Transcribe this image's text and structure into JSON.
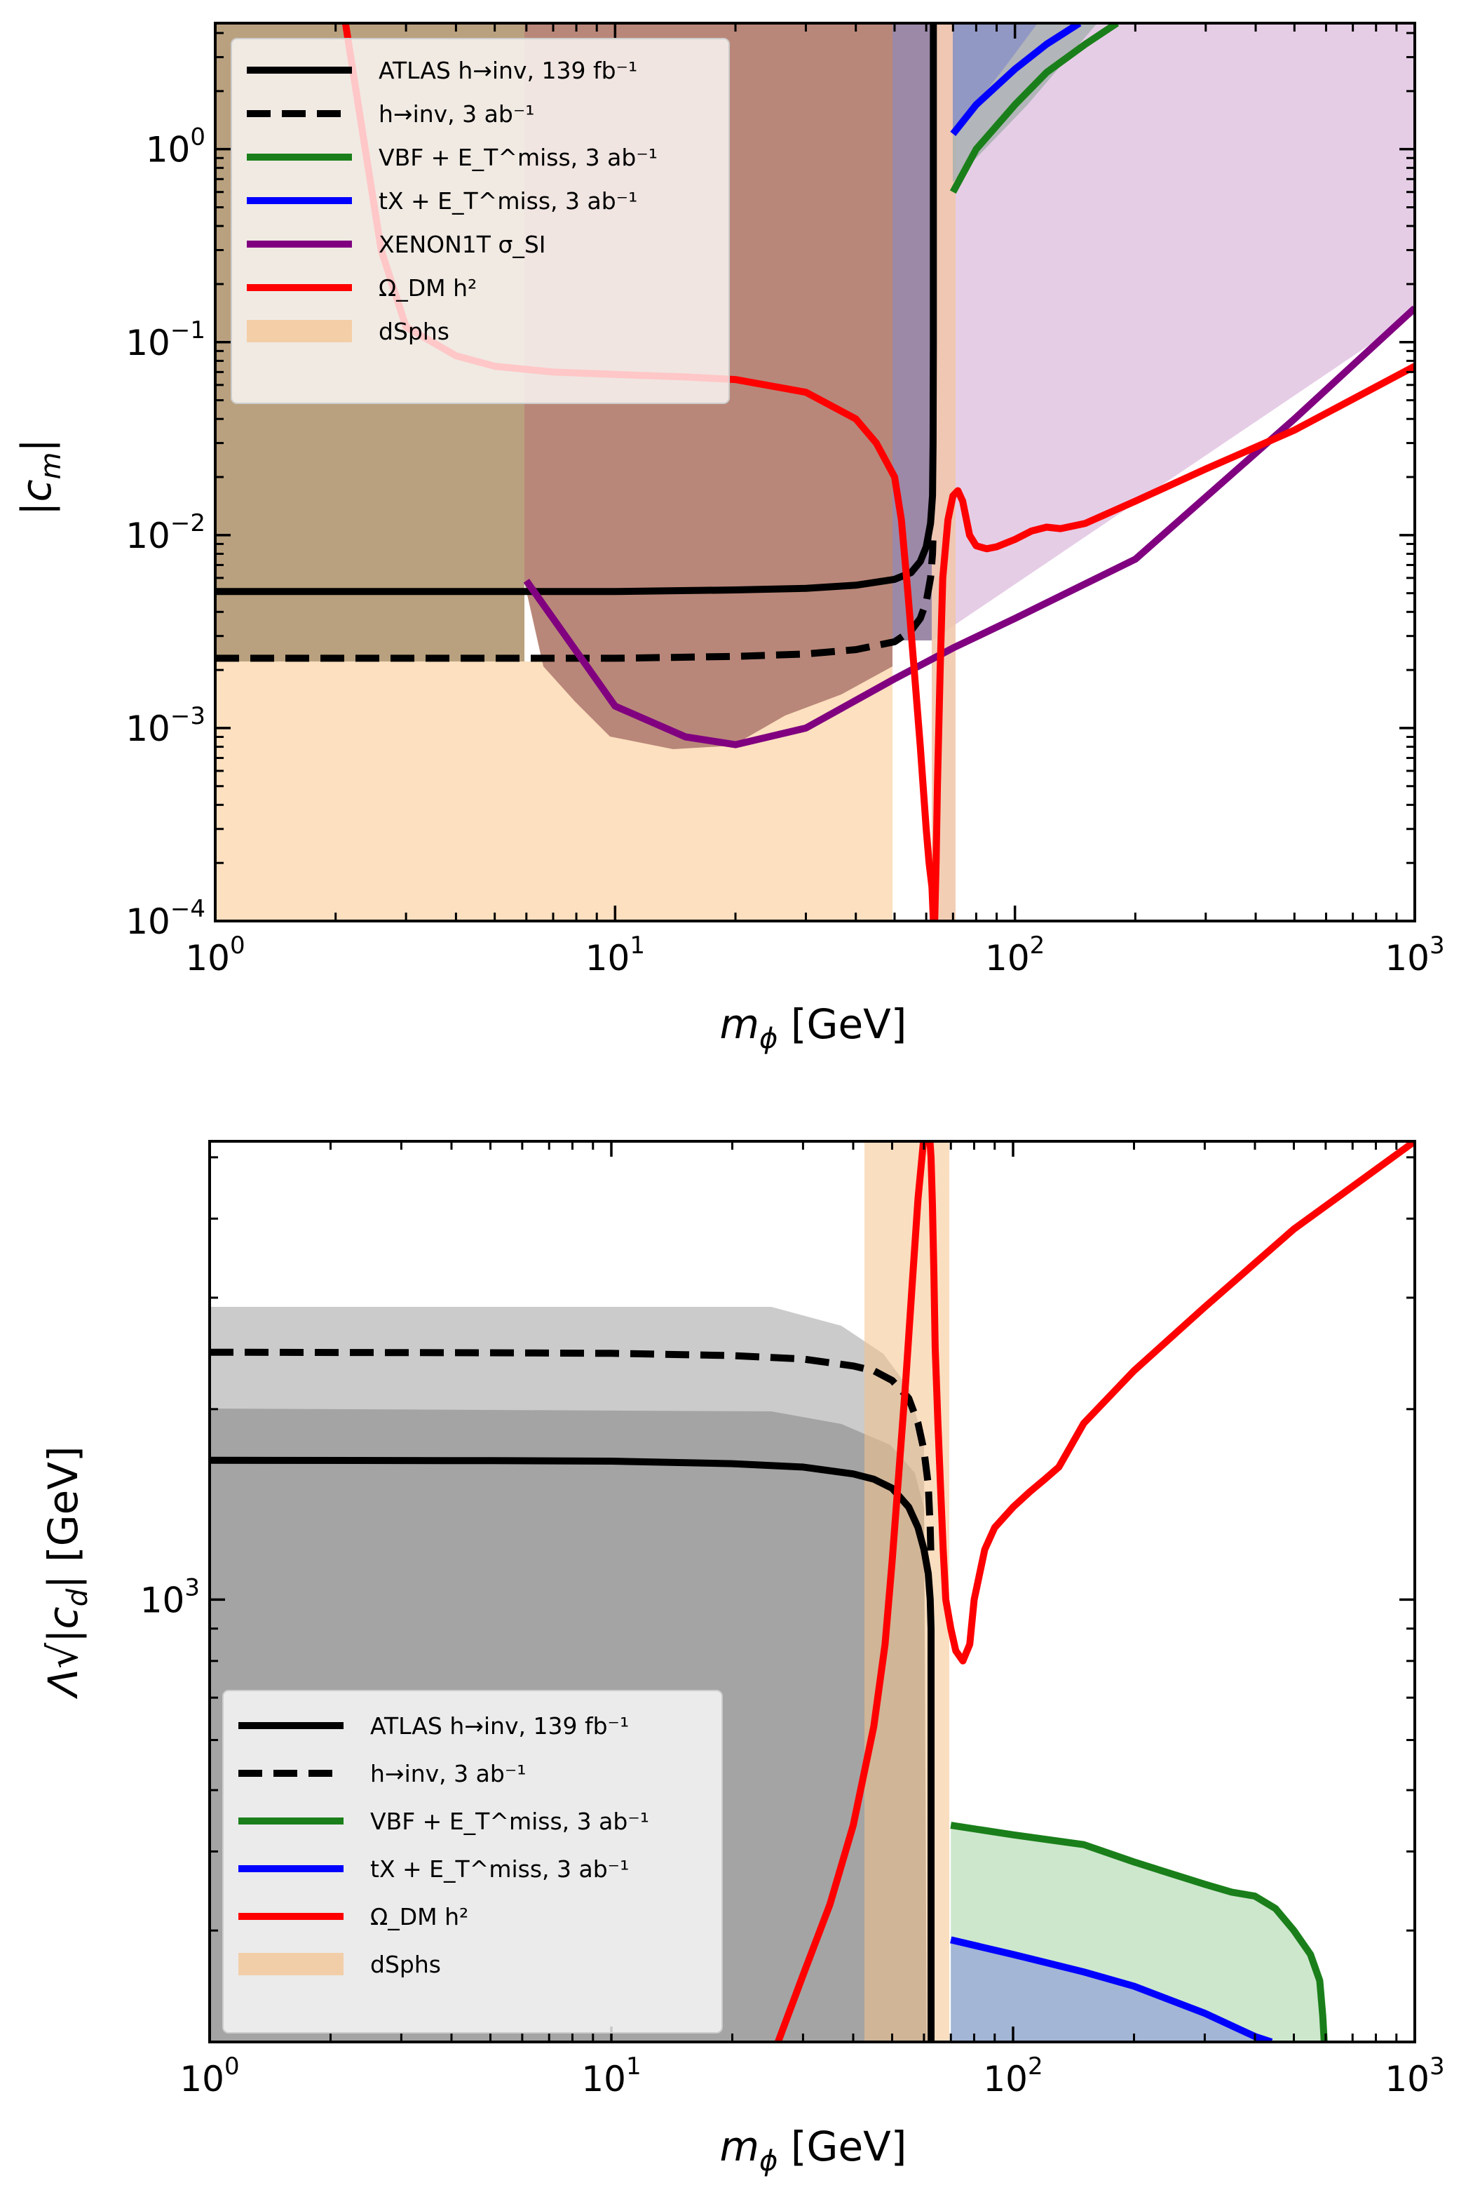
{
  "chart_data": [
    {
      "type": "line",
      "panel": "top",
      "xscale": "log",
      "yscale": "log",
      "xlim": [
        1,
        1000
      ],
      "ylim": [
        0.0001,
        4.5
      ],
      "xlabel": "m_ϕ [GeV]",
      "ylabel": "|c_m|",
      "x_ticks": [
        {
          "value": 1,
          "base": "10",
          "exp": "0"
        },
        {
          "value": 10,
          "base": "10",
          "exp": "1"
        },
        {
          "value": 100,
          "base": "10",
          "exp": "2"
        },
        {
          "value": 1000,
          "base": "10",
          "exp": "3"
        }
      ],
      "y_ticks": [
        {
          "value": 0.0001,
          "base": "10",
          "exp": "−4"
        },
        {
          "value": 0.001,
          "base": "10",
          "exp": "−3"
        },
        {
          "value": 0.01,
          "base": "10",
          "exp": "−2"
        },
        {
          "value": 0.1,
          "base": "10",
          "exp": "−1"
        },
        {
          "value": 1,
          "base": "10",
          "exp": "0"
        }
      ],
      "legend_position": "top-left",
      "legend": [
        {
          "label": "ATLAS h→inv, 139 fb⁻¹",
          "color": "#000000",
          "style": "solid"
        },
        {
          "label": "h→inv, 3 ab⁻¹",
          "color": "#000000",
          "style": "dashed"
        },
        {
          "label": "VBF + E_T^miss, 3 ab⁻¹",
          "color": "#1a7f1a",
          "style": "solid"
        },
        {
          "label": "tX + E_T^miss, 3 ab⁻¹",
          "color": "#0000ff",
          "style": "solid"
        },
        {
          "label": "XENON1T σ_SI",
          "color": "#800080",
          "style": "solid"
        },
        {
          "label": "Ω_DM h²",
          "color": "#ff0000",
          "style": "solid"
        },
        {
          "label": "dSphs",
          "color": "#f5c28c",
          "style": "patch"
        }
      ],
      "series": [
        {
          "name": "ATLAS h→inv, 139 fb⁻¹",
          "color": "#000000",
          "x": [
            1,
            5,
            10,
            20,
            30,
            40,
            50,
            55,
            58,
            60,
            61.5,
            62.2,
            62.4,
            62.5,
            62.5
          ],
          "y": [
            0.0051,
            0.0051,
            0.0051,
            0.0052,
            0.0053,
            0.0055,
            0.0059,
            0.0064,
            0.0073,
            0.0087,
            0.0115,
            0.016,
            0.03,
            0.1,
            4.5
          ]
        },
        {
          "name": "h→inv, 3 ab⁻¹",
          "color": "#000000",
          "dashed": true,
          "x": [
            1,
            5,
            10,
            20,
            30,
            40,
            50,
            55,
            58,
            60,
            61.5,
            62.2,
            62.4
          ],
          "y": [
            0.0023,
            0.0023,
            0.0023,
            0.00235,
            0.00242,
            0.00255,
            0.0028,
            0.0032,
            0.0037,
            0.0045,
            0.006,
            0.008,
            0.01
          ]
        },
        {
          "name": "VBF + E_T^miss, 3 ab⁻¹",
          "color": "#1a7f1a",
          "x": [
            70,
            80,
            100,
            120,
            150,
            180
          ],
          "y": [
            0.6,
            1.0,
            1.7,
            2.5,
            3.5,
            4.5
          ]
        },
        {
          "name": "tX + E_T^miss, 3 ab⁻¹",
          "color": "#0000ff",
          "x": [
            70,
            80,
            100,
            120,
            145
          ],
          "y": [
            1.2,
            1.7,
            2.6,
            3.5,
            4.5
          ]
        },
        {
          "name": "XENON1T σ_SI",
          "color": "#800080",
          "x": [
            6,
            8,
            10,
            15,
            20,
            30,
            50,
            70,
            100,
            200,
            500,
            1000
          ],
          "y": [
            0.0058,
            0.0025,
            0.0013,
            0.0009,
            0.00082,
            0.001,
            0.0018,
            0.0026,
            0.0037,
            0.0075,
            0.04,
            0.15
          ]
        },
        {
          "name": "Ω_DM h²",
          "color": "#ff0000",
          "x": [
            2.1,
            2.3,
            2.6,
            3,
            4,
            5,
            7,
            10,
            15,
            20,
            30,
            40,
            45,
            50,
            52,
            54,
            56,
            58,
            60,
            61,
            62,
            62.5,
            63,
            63.5,
            64,
            65,
            66,
            68,
            70,
            72,
            74,
            77,
            80,
            85,
            90,
            100,
            110,
            120,
            130,
            150,
            200,
            300,
            500,
            1000
          ],
          "y": [
            5,
            1.5,
            0.3,
            0.12,
            0.085,
            0.075,
            0.07,
            0.068,
            0.066,
            0.064,
            0.055,
            0.04,
            0.03,
            0.02,
            0.012,
            0.005,
            0.002,
            0.0008,
            0.0003,
            0.0002,
            0.00015,
            0.0001,
            0.0001,
            0.0002,
            0.0005,
            0.002,
            0.006,
            0.012,
            0.016,
            0.017,
            0.015,
            0.01,
            0.0088,
            0.0085,
            0.0087,
            0.0095,
            0.0105,
            0.011,
            0.0108,
            0.0115,
            0.015,
            0.022,
            0.035,
            0.075
          ]
        }
      ]
    },
    {
      "type": "line",
      "panel": "bottom",
      "xscale": "log",
      "yscale": "log",
      "xlim": [
        1,
        1000
      ],
      "ylim": [
        200,
        5300
      ],
      "xlabel": "m_ϕ [GeV]",
      "ylabel": "Λ√|c_d| [GeV]",
      "x_ticks": [
        {
          "value": 1,
          "base": "10",
          "exp": "0"
        },
        {
          "value": 10,
          "base": "10",
          "exp": "1"
        },
        {
          "value": 100,
          "base": "10",
          "exp": "2"
        },
        {
          "value": 1000,
          "base": "10",
          "exp": "3"
        }
      ],
      "y_ticks": [
        {
          "value": 1000,
          "base": "10",
          "exp": "3"
        }
      ],
      "legend_position": "lower-left",
      "legend": [
        {
          "label": "ATLAS h→inv, 139 fb⁻¹",
          "color": "#000000",
          "style": "solid"
        },
        {
          "label": "h→inv, 3 ab⁻¹",
          "color": "#000000",
          "style": "dashed"
        },
        {
          "label": "VBF + E_T^miss, 3 ab⁻¹",
          "color": "#1a7f1a",
          "style": "solid"
        },
        {
          "label": "tX + E_T^miss, 3 ab⁻¹",
          "color": "#0000ff",
          "style": "solid"
        },
        {
          "label": "Ω_DM h²",
          "color": "#ff0000",
          "style": "solid"
        },
        {
          "label": "dSphs",
          "color": "#f5c28c",
          "style": "patch"
        }
      ],
      "series": [
        {
          "name": "ATLAS h→inv, 139 fb⁻¹",
          "color": "#000000",
          "x": [
            1,
            5,
            10,
            20,
            30,
            40,
            45,
            50,
            55,
            58,
            60,
            61.5,
            62.2,
            62.5,
            62.5
          ],
          "y": [
            1660,
            1658,
            1655,
            1640,
            1620,
            1580,
            1550,
            1500,
            1400,
            1300,
            1200,
            1100,
            1000,
            900,
            200
          ]
        },
        {
          "name": "h→inv, 3 ab⁻¹",
          "color": "#000000",
          "dashed": true,
          "x": [
            1,
            5,
            10,
            20,
            30,
            40,
            45,
            50,
            55,
            58,
            60,
            61.5,
            62.2,
            62.5
          ],
          "y": [
            2460,
            2455,
            2450,
            2430,
            2400,
            2340,
            2300,
            2220,
            2080,
            1900,
            1720,
            1520,
            1300,
            1150
          ]
        },
        {
          "name": "VBF + E_T^miss, 3 ab⁻¹",
          "color": "#1a7f1a",
          "x": [
            70,
            100,
            150,
            200,
            300,
            350,
            400,
            450,
            500,
            550,
            580,
            590,
            595
          ],
          "y": [
            440,
            425,
            410,
            385,
            355,
            345,
            340,
            325,
            300,
            275,
            250,
            220,
            200
          ]
        },
        {
          "name": "tX + E_T^miss, 3 ab⁻¹",
          "color": "#0000ff",
          "x": [
            70,
            100,
            150,
            200,
            300,
            400,
            440
          ],
          "y": [
            290,
            275,
            258,
            245,
            222,
            204,
            200
          ]
        },
        {
          "name": "Ω_DM h²",
          "color": "#ff0000",
          "x": [
            26,
            30,
            35,
            40,
            45,
            48,
            50,
            52,
            54,
            56,
            58,
            60,
            61,
            62,
            62.5,
            63,
            63.5,
            64,
            65,
            66,
            67,
            68,
            70,
            72,
            75,
            78,
            80,
            85,
            90,
            100,
            110,
            120,
            130,
            150,
            200,
            300,
            500,
            1000
          ],
          "y": [
            200,
            255,
            330,
            440,
            630,
            850,
            1150,
            1600,
            2200,
            3100,
            4300,
            5400,
            5400,
            5400,
            5000,
            4200,
            3300,
            2500,
            1900,
            1500,
            1200,
            1000,
            900,
            830,
            800,
            850,
            1000,
            1200,
            1300,
            1400,
            1480,
            1550,
            1620,
            1900,
            2300,
            2900,
            3850,
            5300
          ]
        }
      ]
    }
  ]
}
